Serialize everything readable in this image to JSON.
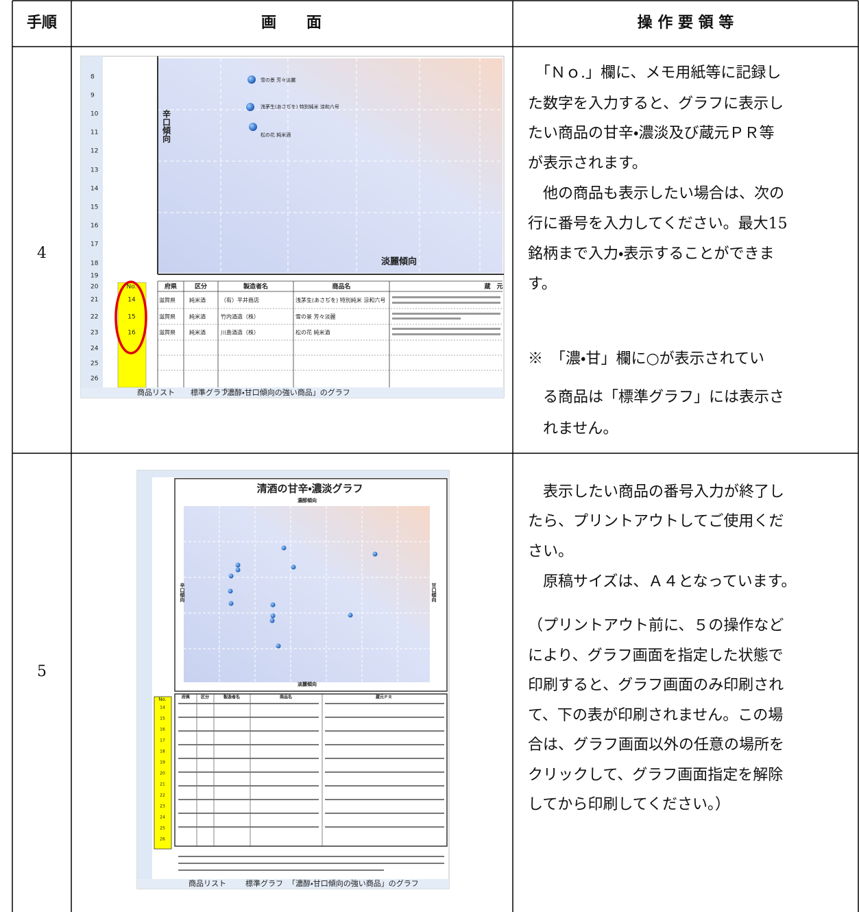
{
  "header": {
    "step": "手順",
    "screen": "画　　面",
    "operation": "操 作 要 領 等"
  },
  "rows": [
    {
      "step": "4",
      "screenshot": {
        "row_numbers": [
          "8",
          "9",
          "10",
          "11",
          "12",
          "13",
          "14",
          "15",
          "16",
          "17",
          "18",
          "19",
          "20",
          "21",
          "22",
          "23",
          "24",
          "25",
          "26"
        ],
        "y_label": "辛口傾向",
        "x_label": "淡麗傾向",
        "points": [
          "雪の景 芳々淡麗",
          "浅茅生(あさぢを) 特別純米 涼和六号",
          "松の花 純米酒"
        ],
        "no_header": "No.",
        "no_values": [
          "14",
          "15",
          "16"
        ],
        "table_header": [
          "府県",
          "区分",
          "製造者名",
          "商品名",
          "蔵　元"
        ],
        "table_rows": [
          [
            "滋賀県",
            "純米酒",
            "（有）平井商店",
            "浅茅生(あさぢを) 特別純米 涼和六号"
          ],
          [
            "滋賀県",
            "純米酒",
            "竹内酒造（株）",
            "雪の景 芳々淡麗"
          ],
          [
            "滋賀県",
            "純米酒",
            "川島酒造（株）",
            "松の花 純米酒"
          ]
        ],
        "tabs": [
          "商品リスト",
          "標準グラフ",
          "「濃醇・甘口傾向の強い商品」のグラフ"
        ]
      },
      "paragraphs": [
        [
          "　「Ｎｏ.」欄に、メモ用紙等に記録し",
          "た数字を入力すると、グラフに表示し",
          "たい商品の甘辛・濃淡及び蔵元ＰＲ等",
          "が表示されます。"
        ],
        [
          "　他の商品も表示したい場合は、次の",
          "行に番号を入力してください。最大15",
          "銘柄まで入力・表示することができま",
          "す。"
        ],
        [
          "※　「濃・甘」欄に○が表示されてい",
          "　る商品は「標準グラフ」には表示さ",
          "　れません。"
        ]
      ]
    },
    {
      "step": "5",
      "screenshot": {
        "title": "清酒の甘辛・濃淡グラフ",
        "top_label": "濃醇傾向",
        "bottom_label": "淡麗傾向",
        "left_label": "辛口傾向",
        "right_label": "甘口傾向",
        "no_header": "No.",
        "no_values": [
          "14",
          "15",
          "16",
          "17",
          "18",
          "19",
          "20",
          "21",
          "22",
          "23",
          "24",
          "25",
          "26"
        ],
        "table_header": [
          "府県",
          "区分",
          "製造者名",
          "商品名",
          "蔵元ＰＲ"
        ],
        "tabs": [
          "商品リスト",
          "標準グラフ",
          "「濃醇・甘口傾向の強い商品」のグラフ"
        ]
      },
      "paragraphs": [
        [
          "　表示したい商品の番号入力が終了し",
          "たら、プリントアウトしてご使用くだ",
          "さい。"
        ],
        [
          "　原稿サイズは、Ａ４となっています。"
        ],
        [
          "（プリントアウト前に、５の操作など",
          "により、グラフ画面を指定した状態で",
          "印刷すると、グラフ画面のみ印刷され",
          "て、下の表が印刷されません。この場",
          "合は、グラフ画面以外の任意の場所を",
          "クリックして、グラフ画面指定を解除",
          "してから印刷してください。）"
        ]
      ]
    }
  ]
}
